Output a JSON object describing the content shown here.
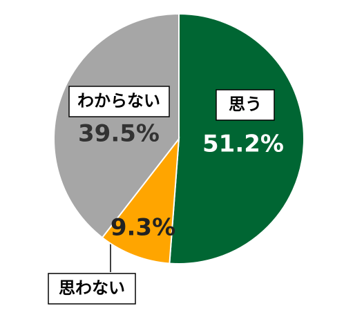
{
  "chart_data": {
    "type": "pie",
    "categories": [
      "思う",
      "思わない",
      "わからない"
    ],
    "values": [
      51.2,
      9.3,
      39.5
    ],
    "value_labels": [
      "51.2%",
      "9.3%",
      "39.5%"
    ],
    "colors": [
      "#006633",
      "#FFA500",
      "#A6A6A6"
    ]
  }
}
